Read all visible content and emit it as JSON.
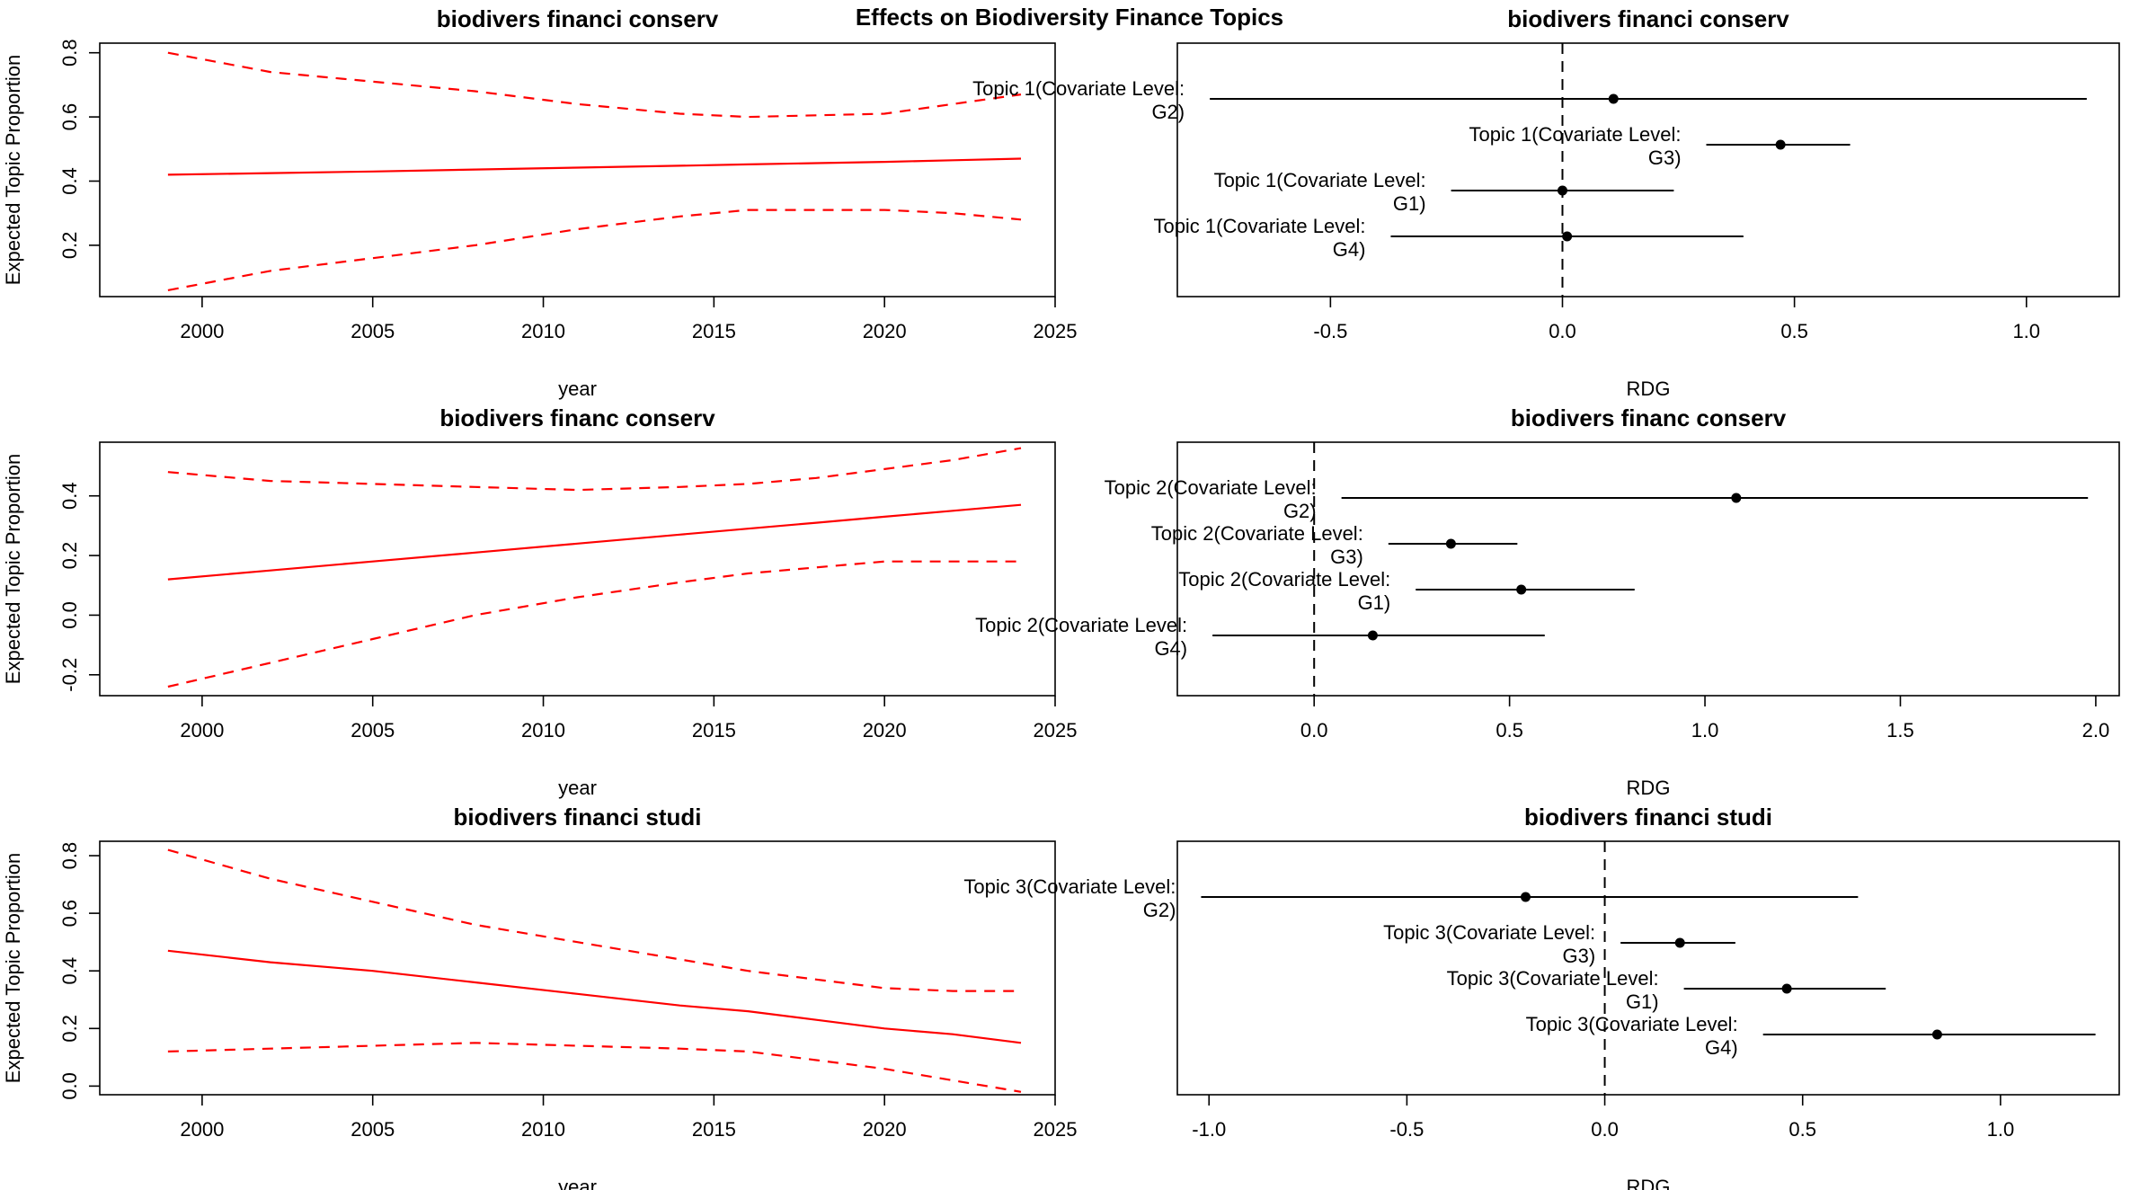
{
  "figure": {
    "title": "Effects on Biodiversity Finance Topics"
  },
  "colors": {
    "trend": "#ff0000",
    "point": "#000000",
    "background": "#ffffff"
  },
  "chart_data": [
    {
      "type": "line",
      "title": "biodivers financi conserv",
      "xlabel": "year",
      "ylabel": "Expected Topic Proportion",
      "xlim": [
        1997,
        2025
      ],
      "ylim": [
        0.04,
        0.83
      ],
      "xticks": [
        "2000",
        "2005",
        "2010",
        "2015",
        "2020",
        "2025"
      ],
      "yticks": [
        "0.2",
        "0.4",
        "0.6",
        "0.8"
      ],
      "x": [
        1999,
        2002,
        2005,
        2008,
        2011,
        2014,
        2016,
        2018,
        2020,
        2022,
        2024
      ],
      "series": [
        {
          "style": "solid",
          "values": [
            0.42,
            0.425,
            0.43,
            0.436,
            0.442,
            0.448,
            0.452,
            0.456,
            0.46,
            0.465,
            0.47
          ]
        },
        {
          "style": "dashed",
          "values": [
            0.8,
            0.74,
            0.71,
            0.68,
            0.64,
            0.61,
            0.6,
            0.605,
            0.61,
            0.64,
            0.67
          ]
        },
        {
          "style": "dashed",
          "values": [
            0.06,
            0.12,
            0.16,
            0.2,
            0.25,
            0.29,
            0.31,
            0.31,
            0.31,
            0.3,
            0.28
          ]
        }
      ]
    },
    {
      "type": "scatter",
      "title": "biodivers financi conserv",
      "xlabel": "RDG",
      "xlim": [
        -0.83,
        1.2
      ],
      "xticks": [
        "-0.5",
        "0.0",
        "0.5",
        "1.0"
      ],
      "refline": 0,
      "points": [
        {
          "line1": "Topic 1(Covariate Level:",
          "line2": "G2)",
          "est": 0.11,
          "lo": -0.76,
          "hi": 1.13
        },
        {
          "line1": "Topic 1(Covariate Level:",
          "line2": "G3)",
          "est": 0.47,
          "lo": 0.31,
          "hi": 0.62
        },
        {
          "line1": "Topic 1(Covariate Level:",
          "line2": "G1)",
          "est": 0.0,
          "lo": -0.24,
          "hi": 0.24
        },
        {
          "line1": "Topic 1(Covariate Level:",
          "line2": "G4)",
          "est": 0.01,
          "lo": -0.37,
          "hi": 0.39
        }
      ]
    },
    {
      "type": "line",
      "title": "biodivers financ conserv",
      "xlabel": "year",
      "ylabel": "Expected Topic Proportion",
      "xlim": [
        1997,
        2025
      ],
      "ylim": [
        -0.27,
        0.58
      ],
      "xticks": [
        "2000",
        "2005",
        "2010",
        "2015",
        "2020",
        "2025"
      ],
      "yticks": [
        "-0.2",
        "0.0",
        "0.2",
        "0.4"
      ],
      "x": [
        1999,
        2002,
        2005,
        2008,
        2011,
        2014,
        2016,
        2018,
        2020,
        2022,
        2024
      ],
      "series": [
        {
          "style": "solid",
          "values": [
            0.12,
            0.15,
            0.18,
            0.21,
            0.24,
            0.27,
            0.29,
            0.31,
            0.33,
            0.35,
            0.37
          ]
        },
        {
          "style": "dashed",
          "values": [
            0.48,
            0.45,
            0.44,
            0.43,
            0.42,
            0.43,
            0.44,
            0.46,
            0.49,
            0.52,
            0.56
          ]
        },
        {
          "style": "dashed",
          "values": [
            -0.24,
            -0.16,
            -0.08,
            0.0,
            0.06,
            0.11,
            0.14,
            0.16,
            0.18,
            0.18,
            0.18
          ]
        }
      ]
    },
    {
      "type": "scatter",
      "title": "biodivers financ conserv",
      "xlabel": "RDG",
      "xlim": [
        -0.35,
        2.06
      ],
      "xticks": [
        "0.0",
        "0.5",
        "1.0",
        "1.5",
        "2.0"
      ],
      "refline": 0,
      "points": [
        {
          "line1": "Topic 2(Covariate Level:",
          "line2": "G2)",
          "est": 1.08,
          "lo": 0.07,
          "hi": 1.98
        },
        {
          "line1": "Topic 2(Covariate Level:",
          "line2": "G3)",
          "est": 0.35,
          "lo": 0.19,
          "hi": 0.52
        },
        {
          "line1": "Topic 2(Covariate Level:",
          "line2": "G1)",
          "est": 0.53,
          "lo": 0.26,
          "hi": 0.82
        },
        {
          "line1": "Topic 2(Covariate Level:",
          "line2": "G4)",
          "est": 0.15,
          "lo": -0.26,
          "hi": 0.59
        }
      ]
    },
    {
      "type": "line",
      "title": "biodivers financi studi",
      "xlabel": "year",
      "ylabel": "Expected Topic Proportion",
      "xlim": [
        1997,
        2025
      ],
      "ylim": [
        -0.03,
        0.85
      ],
      "xticks": [
        "2000",
        "2005",
        "2010",
        "2015",
        "2020",
        "2025"
      ],
      "yticks": [
        "0.0",
        "0.2",
        "0.4",
        "0.6",
        "0.8"
      ],
      "x": [
        1999,
        2002,
        2005,
        2008,
        2011,
        2014,
        2016,
        2018,
        2020,
        2022,
        2024
      ],
      "series": [
        {
          "style": "solid",
          "values": [
            0.47,
            0.43,
            0.4,
            0.36,
            0.32,
            0.28,
            0.26,
            0.23,
            0.2,
            0.18,
            0.15
          ]
        },
        {
          "style": "dashed",
          "values": [
            0.82,
            0.72,
            0.64,
            0.56,
            0.5,
            0.44,
            0.4,
            0.37,
            0.34,
            0.33,
            0.33
          ]
        },
        {
          "style": "dashed",
          "values": [
            0.12,
            0.13,
            0.14,
            0.15,
            0.14,
            0.13,
            0.12,
            0.09,
            0.06,
            0.02,
            -0.02
          ]
        }
      ]
    },
    {
      "type": "scatter",
      "title": "biodivers financi studi",
      "xlabel": "RDG",
      "xlim": [
        -1.08,
        1.3
      ],
      "xticks": [
        "-1.0",
        "-0.5",
        "0.0",
        "0.5",
        "1.0"
      ],
      "refline": 0,
      "points": [
        {
          "line1": "Topic 3(Covariate Level:",
          "line2": "G2)",
          "est": -0.2,
          "lo": -1.02,
          "hi": 0.64
        },
        {
          "line1": "Topic 3(Covariate Level:",
          "line2": "G3)",
          "est": 0.19,
          "lo": 0.04,
          "hi": 0.33
        },
        {
          "line1": "Topic 3(Covariate Level:",
          "line2": "G1)",
          "est": 0.46,
          "lo": 0.2,
          "hi": 0.71
        },
        {
          "line1": "Topic 3(Covariate Level:",
          "line2": "G4)",
          "est": 0.84,
          "lo": 0.4,
          "hi": 1.24
        }
      ]
    }
  ]
}
